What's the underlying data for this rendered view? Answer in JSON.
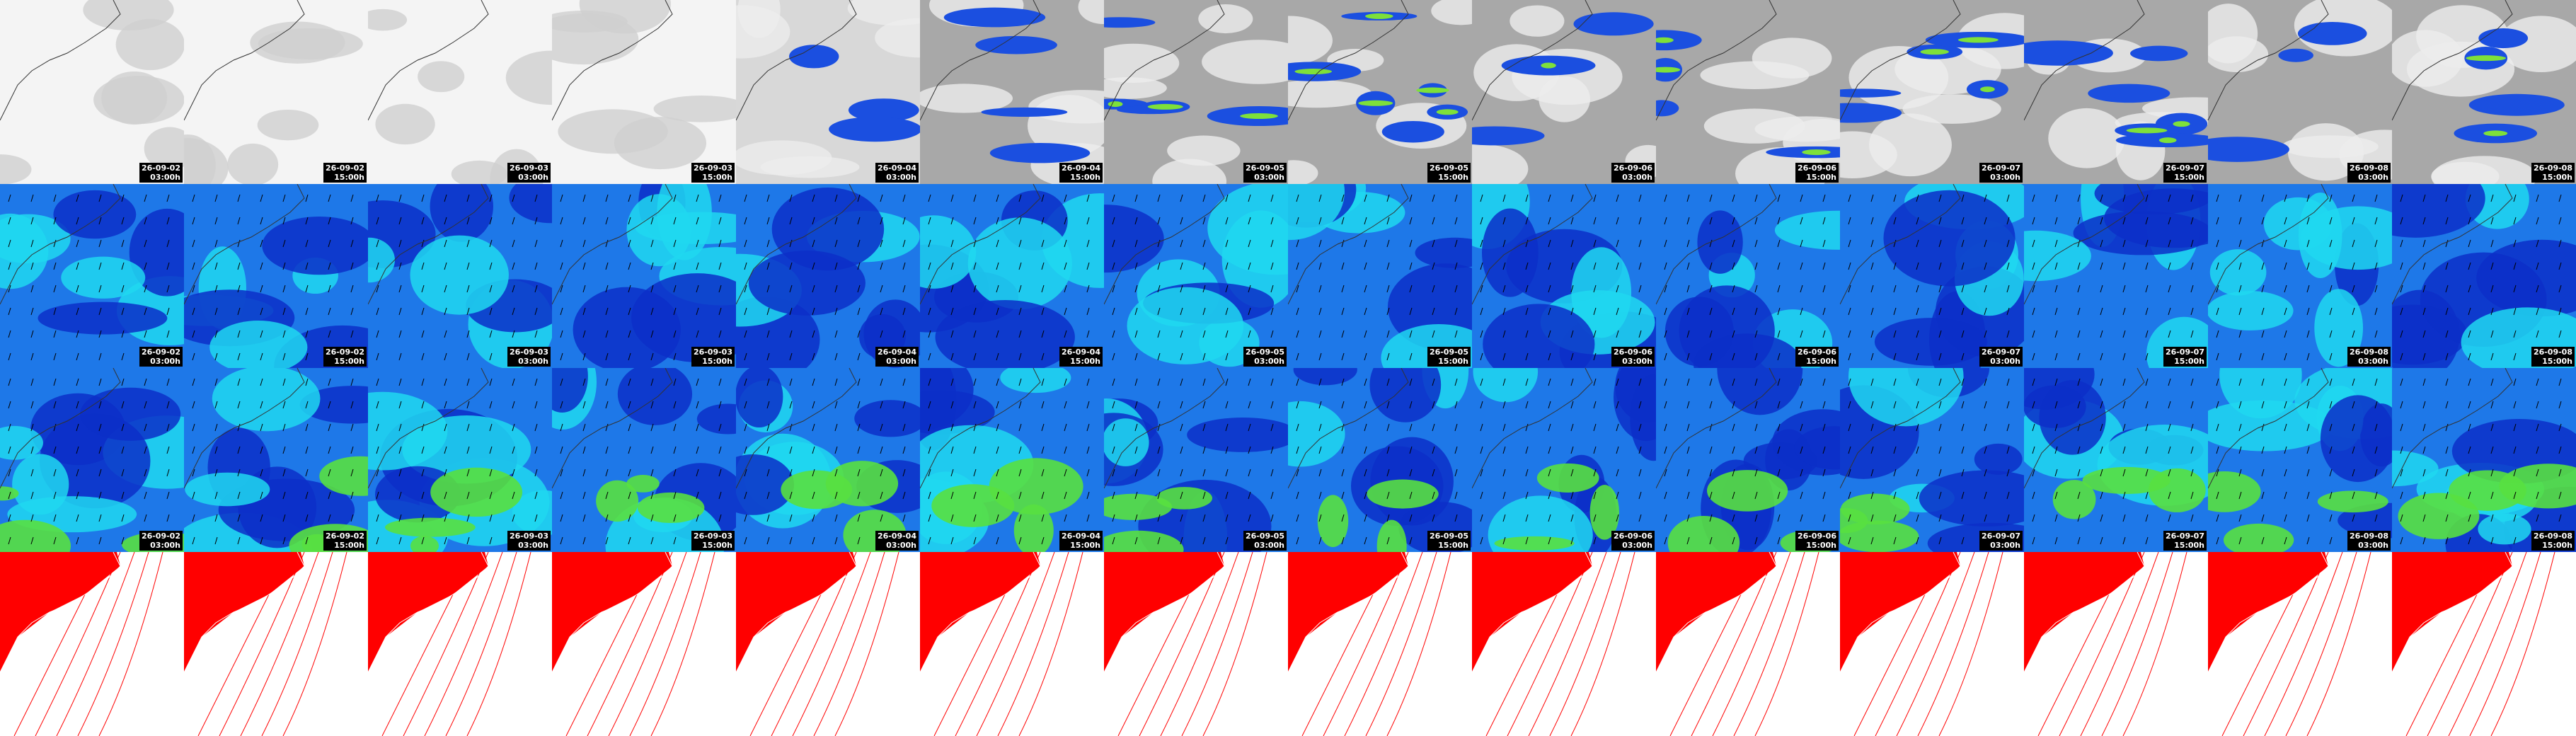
{
  "columns": [
    {
      "date": "26-09-02",
      "time": "03:00h"
    },
    {
      "date": "26-09-02",
      "time": "15:00h"
    },
    {
      "date": "26-09-03",
      "time": "03:00h"
    },
    {
      "date": "26-09-03",
      "time": "15:00h"
    },
    {
      "date": "26-09-04",
      "time": "03:00h"
    },
    {
      "date": "26-09-04",
      "time": "15:00h"
    },
    {
      "date": "26-09-05",
      "time": "03:00h"
    },
    {
      "date": "26-09-05",
      "time": "15:00h"
    },
    {
      "date": "26-09-06",
      "time": "03:00h"
    },
    {
      "date": "26-09-06",
      "time": "15:00h"
    },
    {
      "date": "26-09-07",
      "time": "03:00h"
    },
    {
      "date": "26-09-07",
      "time": "15:00h"
    },
    {
      "date": "26-09-08",
      "time": "03:00h"
    },
    {
      "date": "26-09-08",
      "time": "15:00h"
    }
  ]
}
